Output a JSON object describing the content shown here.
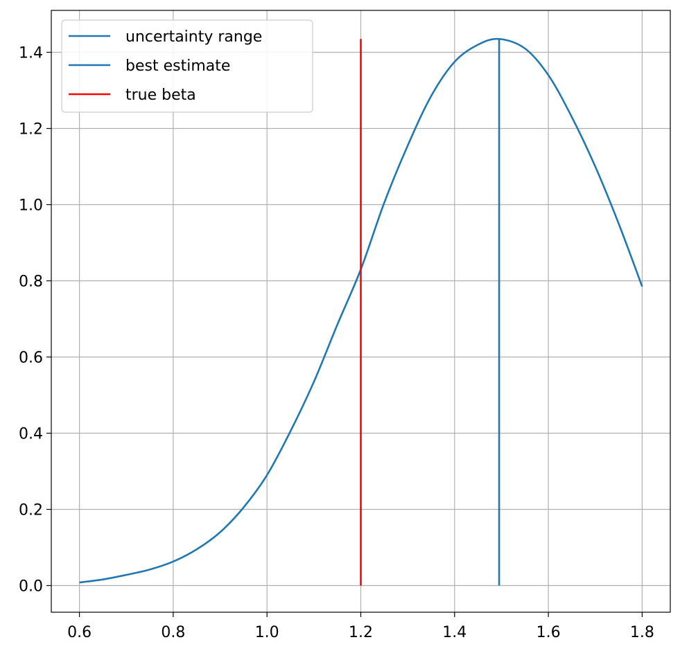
{
  "chart_data": {
    "type": "line",
    "title": "",
    "xlabel": "",
    "ylabel": "",
    "xlim": [
      0.54,
      1.86
    ],
    "ylim": [
      -0.07,
      1.51
    ],
    "grid": true,
    "legend_position": "top-left",
    "x_ticks": [
      "0.6",
      "0.8",
      "1.0",
      "1.2",
      "1.4",
      "1.6",
      "1.8"
    ],
    "y_ticks": [
      "0.0",
      "0.2",
      "0.4",
      "0.6",
      "0.8",
      "1.0",
      "1.2",
      "1.4"
    ],
    "series": [
      {
        "name": "uncertainty range",
        "kind": "curve",
        "color": "#1f77b4",
        "x": [
          0.6,
          0.65,
          0.7,
          0.75,
          0.8,
          0.85,
          0.9,
          0.95,
          1.0,
          1.05,
          1.1,
          1.15,
          1.2,
          1.25,
          1.3,
          1.35,
          1.4,
          1.45,
          1.495,
          1.55,
          1.6,
          1.65,
          1.7,
          1.75,
          1.8
        ],
        "y": [
          0.008,
          0.016,
          0.028,
          0.042,
          0.063,
          0.095,
          0.14,
          0.205,
          0.29,
          0.405,
          0.535,
          0.685,
          0.83,
          1.005,
          1.155,
          1.285,
          1.375,
          1.42,
          1.435,
          1.41,
          1.34,
          1.23,
          1.1,
          0.95,
          0.785
        ]
      },
      {
        "name": "best estimate",
        "kind": "vline",
        "color": "#1f77b4",
        "x": 1.495,
        "y_range": [
          0.0,
          1.435
        ]
      },
      {
        "name": "true beta",
        "kind": "vline",
        "color": "#ff0000",
        "x": 1.2,
        "y_range": [
          0.0,
          1.435
        ]
      }
    ]
  }
}
